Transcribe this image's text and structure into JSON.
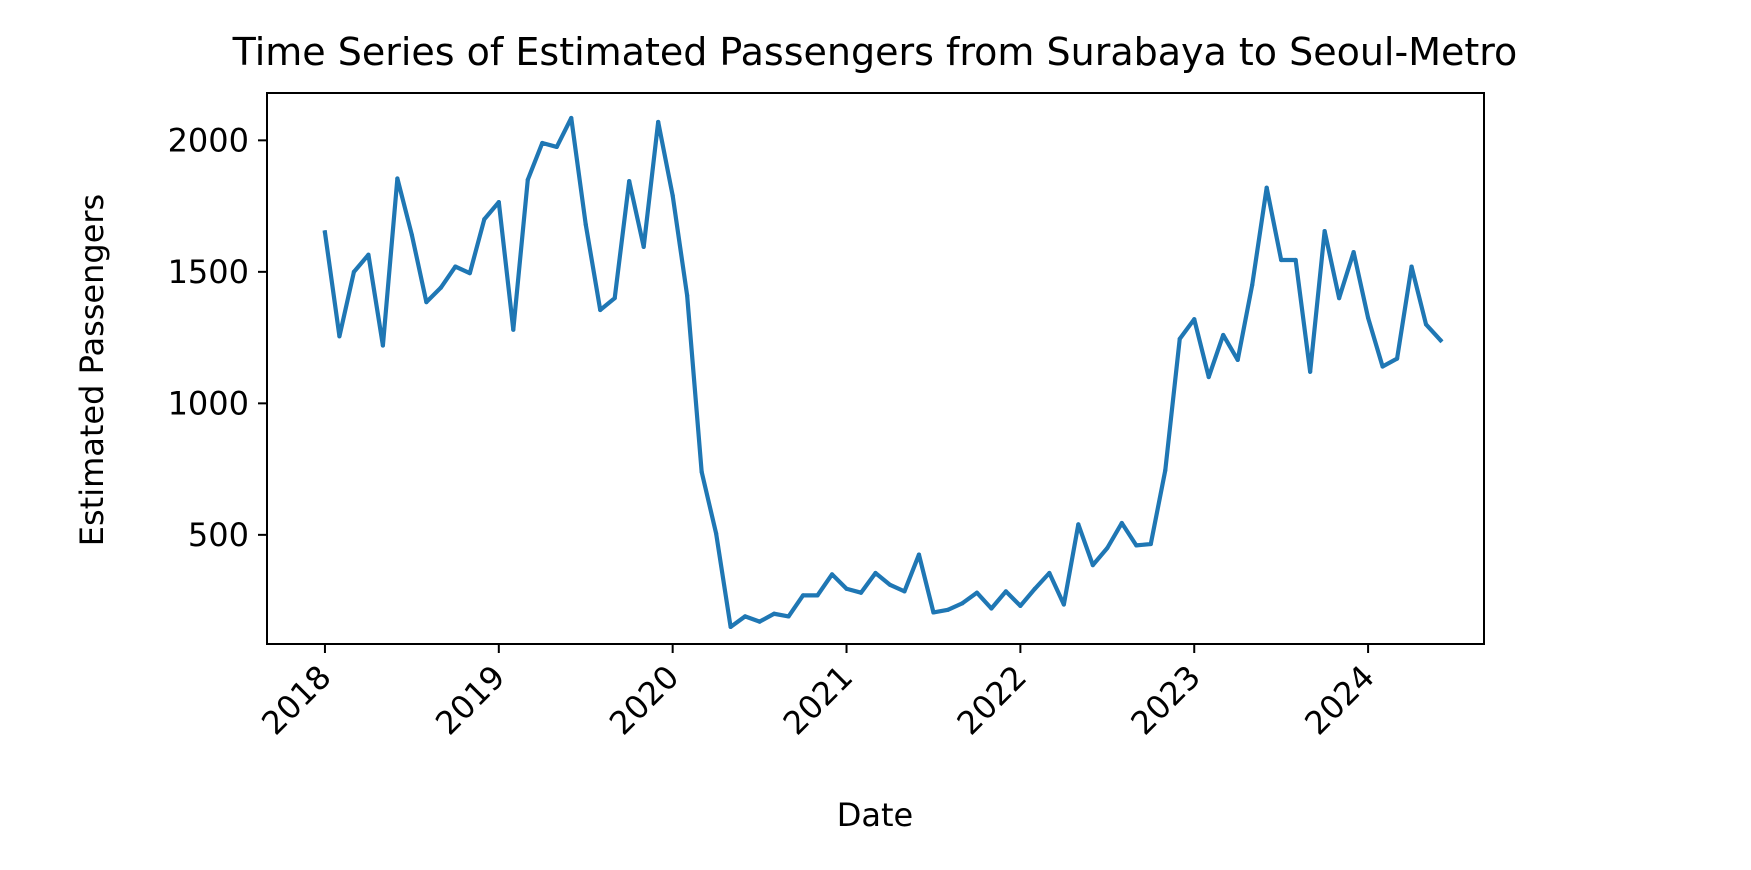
{
  "chart_data": {
    "type": "line",
    "title": "Time Series of Estimated Passengers from Surabaya to Seoul-Metro",
    "xlabel": "Date",
    "ylabel": "Estimated Passengers",
    "x_ticks": [
      "2018",
      "2019",
      "2020",
      "2021",
      "2022",
      "2023",
      "2024"
    ],
    "y_ticks": [
      500,
      1000,
      1500,
      2000
    ],
    "xlim": [
      "2017-09",
      "2024-09"
    ],
    "ylim": [
      85,
      2180
    ],
    "grid": false,
    "line_color": "#1f77b4",
    "series": [
      {
        "x": [
          "2018-01",
          "2018-02",
          "2018-03",
          "2018-04",
          "2018-05",
          "2018-06",
          "2018-07",
          "2018-08",
          "2018-09",
          "2018-10",
          "2018-11",
          "2018-12",
          "2019-01",
          "2019-02",
          "2019-03",
          "2019-04",
          "2019-05",
          "2019-06",
          "2019-07",
          "2019-08",
          "2019-09",
          "2019-10",
          "2019-11",
          "2019-12",
          "2020-01",
          "2020-02",
          "2020-03",
          "2020-04",
          "2020-05",
          "2020-06",
          "2020-07",
          "2020-08",
          "2020-09",
          "2020-10",
          "2020-11",
          "2020-12",
          "2021-01",
          "2021-02",
          "2021-03",
          "2021-04",
          "2021-05",
          "2021-06",
          "2021-07",
          "2021-08",
          "2021-09",
          "2021-10",
          "2021-11",
          "2021-12",
          "2022-01",
          "2022-02",
          "2022-03",
          "2022-04",
          "2022-05",
          "2022-06",
          "2022-07",
          "2022-08",
          "2022-09",
          "2022-10",
          "2022-11",
          "2022-12",
          "2023-01",
          "2023-02",
          "2023-03",
          "2023-04",
          "2023-05",
          "2023-06",
          "2023-07",
          "2023-08",
          "2023-09",
          "2023-10",
          "2023-11",
          "2023-12",
          "2024-01",
          "2024-02",
          "2024-03",
          "2024-04",
          "2024-05",
          "2024-06"
        ],
        "values": [
          1650,
          1255,
          1500,
          1565,
          1220,
          1855,
          1640,
          1385,
          1440,
          1520,
          1495,
          1700,
          1765,
          1280,
          1850,
          1990,
          1975,
          2085,
          1680,
          1355,
          1400,
          1845,
          1595,
          2070,
          1790,
          1410,
          740,
          505,
          150,
          190,
          170,
          200,
          190,
          270,
          270,
          350,
          295,
          280,
          355,
          310,
          285,
          425,
          205,
          215,
          240,
          280,
          220,
          285,
          230,
          295,
          355,
          235,
          540,
          385,
          450,
          545,
          460,
          465,
          745,
          1245,
          1320,
          1100,
          1260,
          1165,
          1450,
          1820,
          1545,
          1545,
          1120,
          1655,
          1400,
          1575,
          1325,
          1140,
          1170,
          1520,
          1300,
          1240
        ]
      }
    ]
  }
}
